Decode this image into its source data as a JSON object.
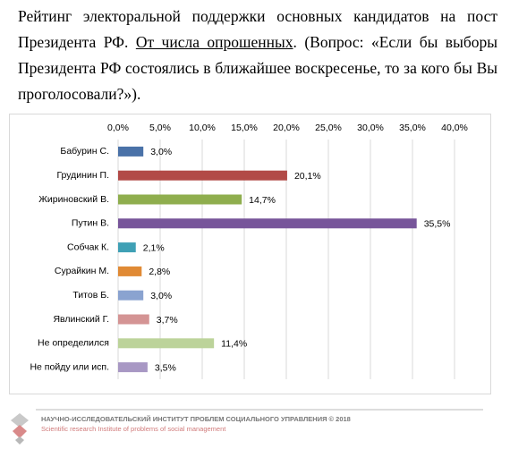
{
  "intro": {
    "part1": "Рейтинг электоральной поддержки основных кандидатов на пост Президента РФ. ",
    "underlined": "От числа опрошенных",
    "part2": ". (Вопрос: «Если бы выборы Президента РФ состоялись в ближайшее воскресенье, то за кого бы Вы проголосовали?»)."
  },
  "chart_data": {
    "type": "hbar",
    "categories": [
      "Бабурин С.",
      "Грудинин П.",
      "Жириновский В.",
      "Путин В.",
      "Собчак К.",
      "Сурайкин М.",
      "Титов Б.",
      "Явлинский Г.",
      "Не определился",
      "Не пойду или исп."
    ],
    "values": [
      3.0,
      20.1,
      14.7,
      35.5,
      2.1,
      2.8,
      3.0,
      3.7,
      11.4,
      3.5
    ],
    "value_labels": [
      "3,0%",
      "20,1%",
      "14,7%",
      "35,5%",
      "2,1%",
      "2,8%",
      "3,0%",
      "3,7%",
      "11,4%",
      "3,5%"
    ],
    "colors": [
      "#4a72a8",
      "#b24a47",
      "#8fae4e",
      "#77559a",
      "#3fa0b5",
      "#e08a35",
      "#8aa3d0",
      "#d49494",
      "#bcd39a",
      "#a898c4"
    ],
    "xlim": [
      0,
      40
    ],
    "xticks": [
      {
        "value": 0,
        "label": "0,0%"
      },
      {
        "value": 5,
        "label": "5,0%"
      },
      {
        "value": 10,
        "label": "10,0%"
      },
      {
        "value": 15,
        "label": "15,0%"
      },
      {
        "value": 20,
        "label": "20,0%"
      },
      {
        "value": 25,
        "label": "25,0%"
      },
      {
        "value": 30,
        "label": "30,0%"
      },
      {
        "value": 35,
        "label": "35,0%"
      },
      {
        "value": 40,
        "label": "40,0%"
      }
    ],
    "grid": true
  },
  "footer": {
    "institute": "НАУЧНО-ИССЛЕДОВАТЕЛЬСКИЙ ИНСТИТУТ ПРОБЛЕМ СОЦИАЛЬНОГО УПРАВЛЕНИЯ  © 2018",
    "english": "Scientific research Institute of problems of social management"
  }
}
